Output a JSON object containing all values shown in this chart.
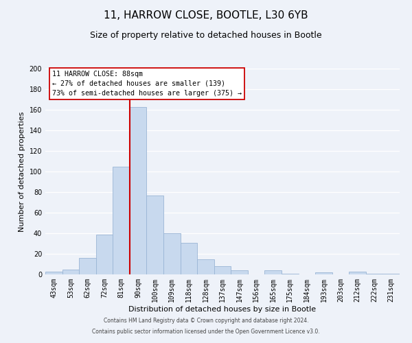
{
  "title": "11, HARROW CLOSE, BOOTLE, L30 6YB",
  "subtitle": "Size of property relative to detached houses in Bootle",
  "xlabel": "Distribution of detached houses by size in Bootle",
  "ylabel": "Number of detached properties",
  "bin_labels": [
    "43sqm",
    "53sqm",
    "62sqm",
    "72sqm",
    "81sqm",
    "90sqm",
    "100sqm",
    "109sqm",
    "118sqm",
    "128sqm",
    "137sqm",
    "147sqm",
    "156sqm",
    "165sqm",
    "175sqm",
    "184sqm",
    "193sqm",
    "203sqm",
    "212sqm",
    "222sqm",
    "231sqm"
  ],
  "bar_heights": [
    3,
    5,
    16,
    39,
    105,
    163,
    77,
    40,
    31,
    15,
    8,
    4,
    0,
    4,
    1,
    0,
    2,
    0,
    3,
    1,
    1
  ],
  "bar_color": "#c8d9ee",
  "bar_edge_color": "#9ab5d5",
  "ylim": [
    0,
    200
  ],
  "yticks": [
    0,
    20,
    40,
    60,
    80,
    100,
    120,
    140,
    160,
    180,
    200
  ],
  "vline_x_idx": 5,
  "vline_color": "#cc0000",
  "annotation_line1": "11 HARROW CLOSE: 88sqm",
  "annotation_line2": "← 27% of detached houses are smaller (139)",
  "annotation_line3": "73% of semi-detached houses are larger (375) →",
  "footer_line1": "Contains HM Land Registry data © Crown copyright and database right 2024.",
  "footer_line2": "Contains public sector information licensed under the Open Government Licence v3.0.",
  "background_color": "#eef2f9",
  "grid_color": "#ffffff",
  "title_fontsize": 11,
  "subtitle_fontsize": 9,
  "axis_fontsize": 8,
  "tick_fontsize": 7,
  "annotation_box_facecolor": "#ffffff",
  "annotation_box_edgecolor": "#cc0000",
  "footer_color": "#444444"
}
